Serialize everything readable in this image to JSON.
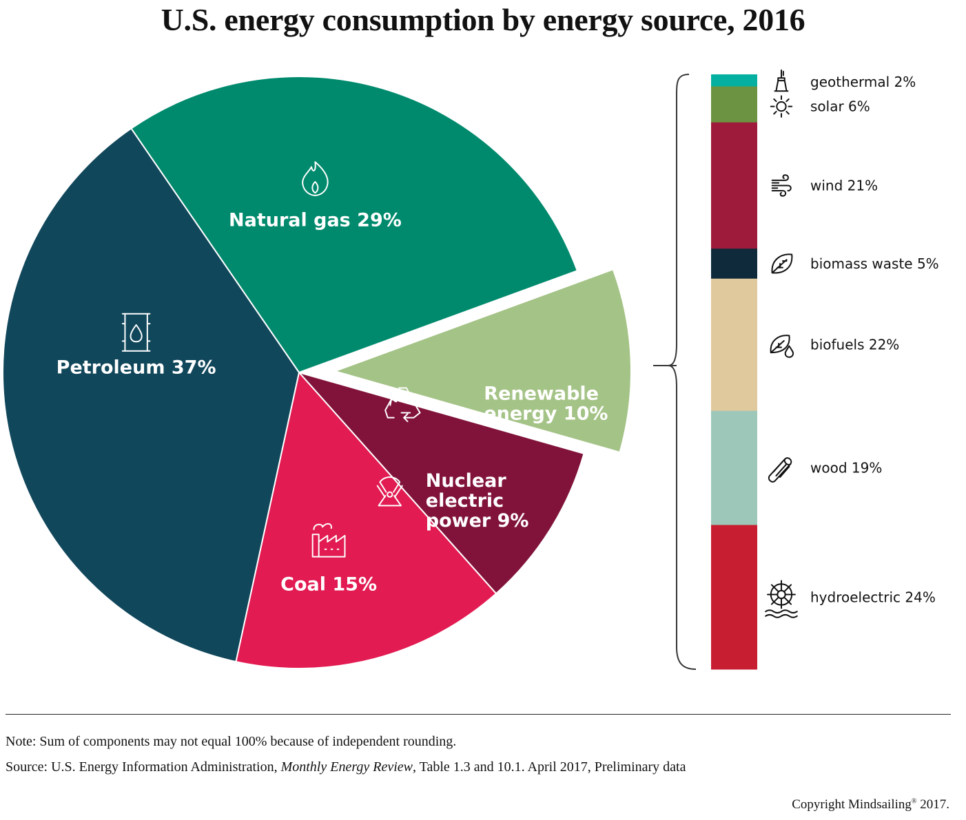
{
  "title": "U.S. energy consumption by energy source, 2016",
  "chart_data": [
    {
      "type": "pie",
      "title": "U.S. energy consumption by energy source, 2016",
      "unit": "%",
      "slices": [
        {
          "name": "Natural gas",
          "label": "Natural gas 29%",
          "value": 29,
          "color": "#008a6d",
          "icon": "flame-icon"
        },
        {
          "name": "Renewable energy",
          "label": "Renewable energy 10%",
          "label_lines": [
            "Renewable",
            "energy 10%"
          ],
          "value": 10,
          "color": "#a4c386",
          "icon": "recycle-icon",
          "exploded": true
        },
        {
          "name": "Nuclear electric power",
          "label": "Nuclear electric power 9%",
          "label_lines": [
            "Nuclear",
            "electric",
            "power 9%"
          ],
          "value": 9,
          "color": "#81133a",
          "icon": "radiation-icon"
        },
        {
          "name": "Coal",
          "label": "Coal 15%",
          "value": 15,
          "color": "#e21b52",
          "icon": "factory-icon"
        },
        {
          "name": "Petroleum",
          "label": "Petroleum 37%",
          "value": 37,
          "color": "#11475b",
          "icon": "oil-barrel-icon"
        }
      ]
    },
    {
      "type": "bar",
      "stacked": true,
      "breakdown_of": "Renewable energy 10%",
      "unit": "%",
      "segments": [
        {
          "name": "geothermal",
          "label": "geothermal 2%",
          "value": 2,
          "color": "#06b0a0",
          "icon": "geothermal-icon"
        },
        {
          "name": "solar",
          "label": "solar 6%",
          "value": 6,
          "color": "#6b9341",
          "icon": "sun-icon"
        },
        {
          "name": "wind",
          "label": "wind 21%",
          "value": 21,
          "color": "#9f1b3b",
          "icon": "wind-icon"
        },
        {
          "name": "biomass waste",
          "label": "biomass waste 5%",
          "value": 5,
          "color": "#0f2a3a",
          "icon": "leaf-icon"
        },
        {
          "name": "biofuels",
          "label": "biofuels 22%",
          "value": 22,
          "color": "#e0c99d",
          "icon": "leaf-drop-icon"
        },
        {
          "name": "wood",
          "label": "wood 19%",
          "value": 19,
          "color": "#9dc7b8",
          "icon": "log-icon"
        },
        {
          "name": "hydroelectric",
          "label": "hydroelectric 24%",
          "value": 24,
          "color": "#c81e32",
          "icon": "water-wheel-icon"
        }
      ]
    }
  ],
  "footer": {
    "note": "Note: Sum of components may not equal 100% because of independent rounding.",
    "source_prefix": "Source: U.S. Energy Information Administration, ",
    "source_italic": "Monthly Energy Review",
    "source_suffix": ", Table 1.3 and 10.1. April 2017, Preliminary data",
    "copyright_main": "Copyright Mindsailing",
    "copyright_mark": "®",
    "copyright_year": " 2017."
  }
}
